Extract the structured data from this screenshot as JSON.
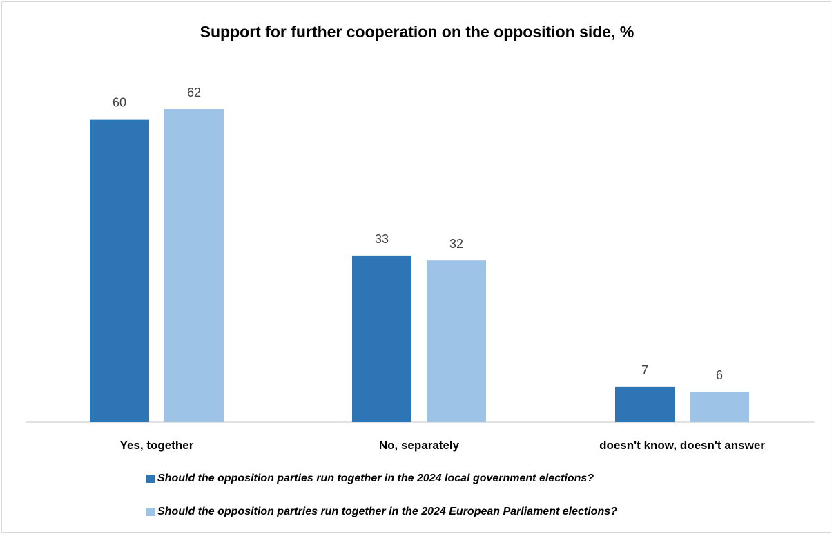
{
  "chart_data": {
    "type": "bar",
    "title": "Support for further cooperation on the opposition side, %",
    "categories": [
      "Yes, together",
      "No, separately",
      "doesn't know, doesn't answer"
    ],
    "series": [
      {
        "name": "Should the opposition parties run together in the 2024 local government elections?",
        "values": [
          60,
          33,
          7
        ],
        "color": "#2e75b6"
      },
      {
        "name": "Should the opposition partries run together in the 2024 European Parliament elections?",
        "values": [
          62,
          32,
          6
        ],
        "color": "#9dc3e6"
      }
    ],
    "ylim": [
      0,
      62
    ],
    "grid": false,
    "legend_position": "bottom"
  }
}
